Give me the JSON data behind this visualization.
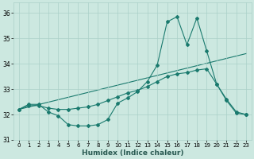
{
  "xlabel": "Humidex (Indice chaleur)",
  "bg_color": "#cce8e0",
  "grid_color": "#aad0c8",
  "line_color": "#1a7a6e",
  "xlim": [
    -0.5,
    23.5
  ],
  "ylim": [
    31.0,
    36.4
  ],
  "yticks": [
    31,
    32,
    33,
    34,
    35,
    36
  ],
  "xticks": [
    0,
    1,
    2,
    3,
    4,
    5,
    6,
    7,
    8,
    9,
    10,
    11,
    12,
    13,
    14,
    15,
    16,
    17,
    18,
    19,
    20,
    21,
    22,
    23
  ],
  "line1_x": [
    0,
    1,
    2,
    3,
    4,
    5,
    6,
    7,
    8,
    9,
    10,
    11,
    12,
    13,
    14,
    15,
    16,
    17,
    18,
    19,
    20,
    21,
    22,
    23
  ],
  "line1_y": [
    32.2,
    32.4,
    32.4,
    32.1,
    31.95,
    31.6,
    31.55,
    31.55,
    31.6,
    31.8,
    32.45,
    32.65,
    32.9,
    33.3,
    33.95,
    35.65,
    35.85,
    34.75,
    35.8,
    34.5,
    33.2,
    32.55,
    32.05,
    32.0
  ],
  "line2_x": [
    0,
    1,
    2,
    3,
    4,
    5,
    6,
    7,
    8,
    9,
    10,
    11,
    12,
    13,
    14,
    15,
    16,
    17,
    18,
    19,
    20,
    21,
    22,
    23
  ],
  "line2_y": [
    32.2,
    32.35,
    32.35,
    32.25,
    32.2,
    32.2,
    32.25,
    32.3,
    32.4,
    32.55,
    32.7,
    32.85,
    32.95,
    33.1,
    33.3,
    33.5,
    33.6,
    33.65,
    33.75,
    33.8,
    33.2,
    32.6,
    32.1,
    32.0
  ],
  "line3_x": [
    0,
    23
  ],
  "line3_y": [
    32.2,
    34.4
  ]
}
